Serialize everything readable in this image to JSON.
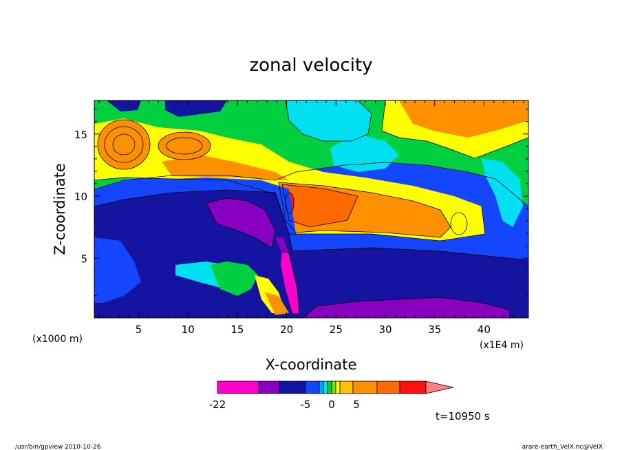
{
  "chart_data": {
    "type": "heatmap",
    "title": "zonal velocity",
    "xlabel": "X-coordinate",
    "ylabel": "Z-coordinate",
    "x_unit": "(x1000 m)",
    "x_scale_note": "(x1E4 m)",
    "xlim": [
      0.5,
      44.5
    ],
    "ylim": [
      0.2,
      17.7
    ],
    "x_ticks": [
      "5",
      "10",
      "15",
      "20",
      "25",
      "30",
      "35",
      "40"
    ],
    "x_tick_values": [
      5,
      10,
      15,
      20,
      25,
      30,
      35,
      40
    ],
    "y_ticks": [
      "5",
      "10",
      "15"
    ],
    "y_tick_values": [
      5,
      10,
      15
    ],
    "grid": false,
    "colorbar": {
      "levels_labeled": [
        "-22",
        "-5",
        "0",
        "5"
      ],
      "level_values": [
        -22,
        -5,
        0,
        5
      ],
      "colors": [
        "#ff00cc",
        "#8800c0",
        "#1414a0",
        "#1446ff",
        "#00a8ff",
        "#00e0f0",
        "#00d040",
        "#80e000",
        "#ffff00",
        "#ffc000",
        "#ff9000",
        "#ff6a00",
        "#ff1010",
        "#ff8080"
      ]
    },
    "time_label": "t=10950 s"
  },
  "footer": {
    "left": "/usr/bin/gpview   2010-10-26",
    "right": "arare-earth_VelX.nc@VelX"
  },
  "colors": {
    "deep_purple": "#8800c0",
    "dark_blue": "#1414a0",
    "blue": "#1446ff",
    "cyan": "#00e0f0",
    "green": "#00d040",
    "yellow": "#ffff00",
    "orange": "#ff9000",
    "red": "#ff1010",
    "magenta": "#ff00cc"
  }
}
